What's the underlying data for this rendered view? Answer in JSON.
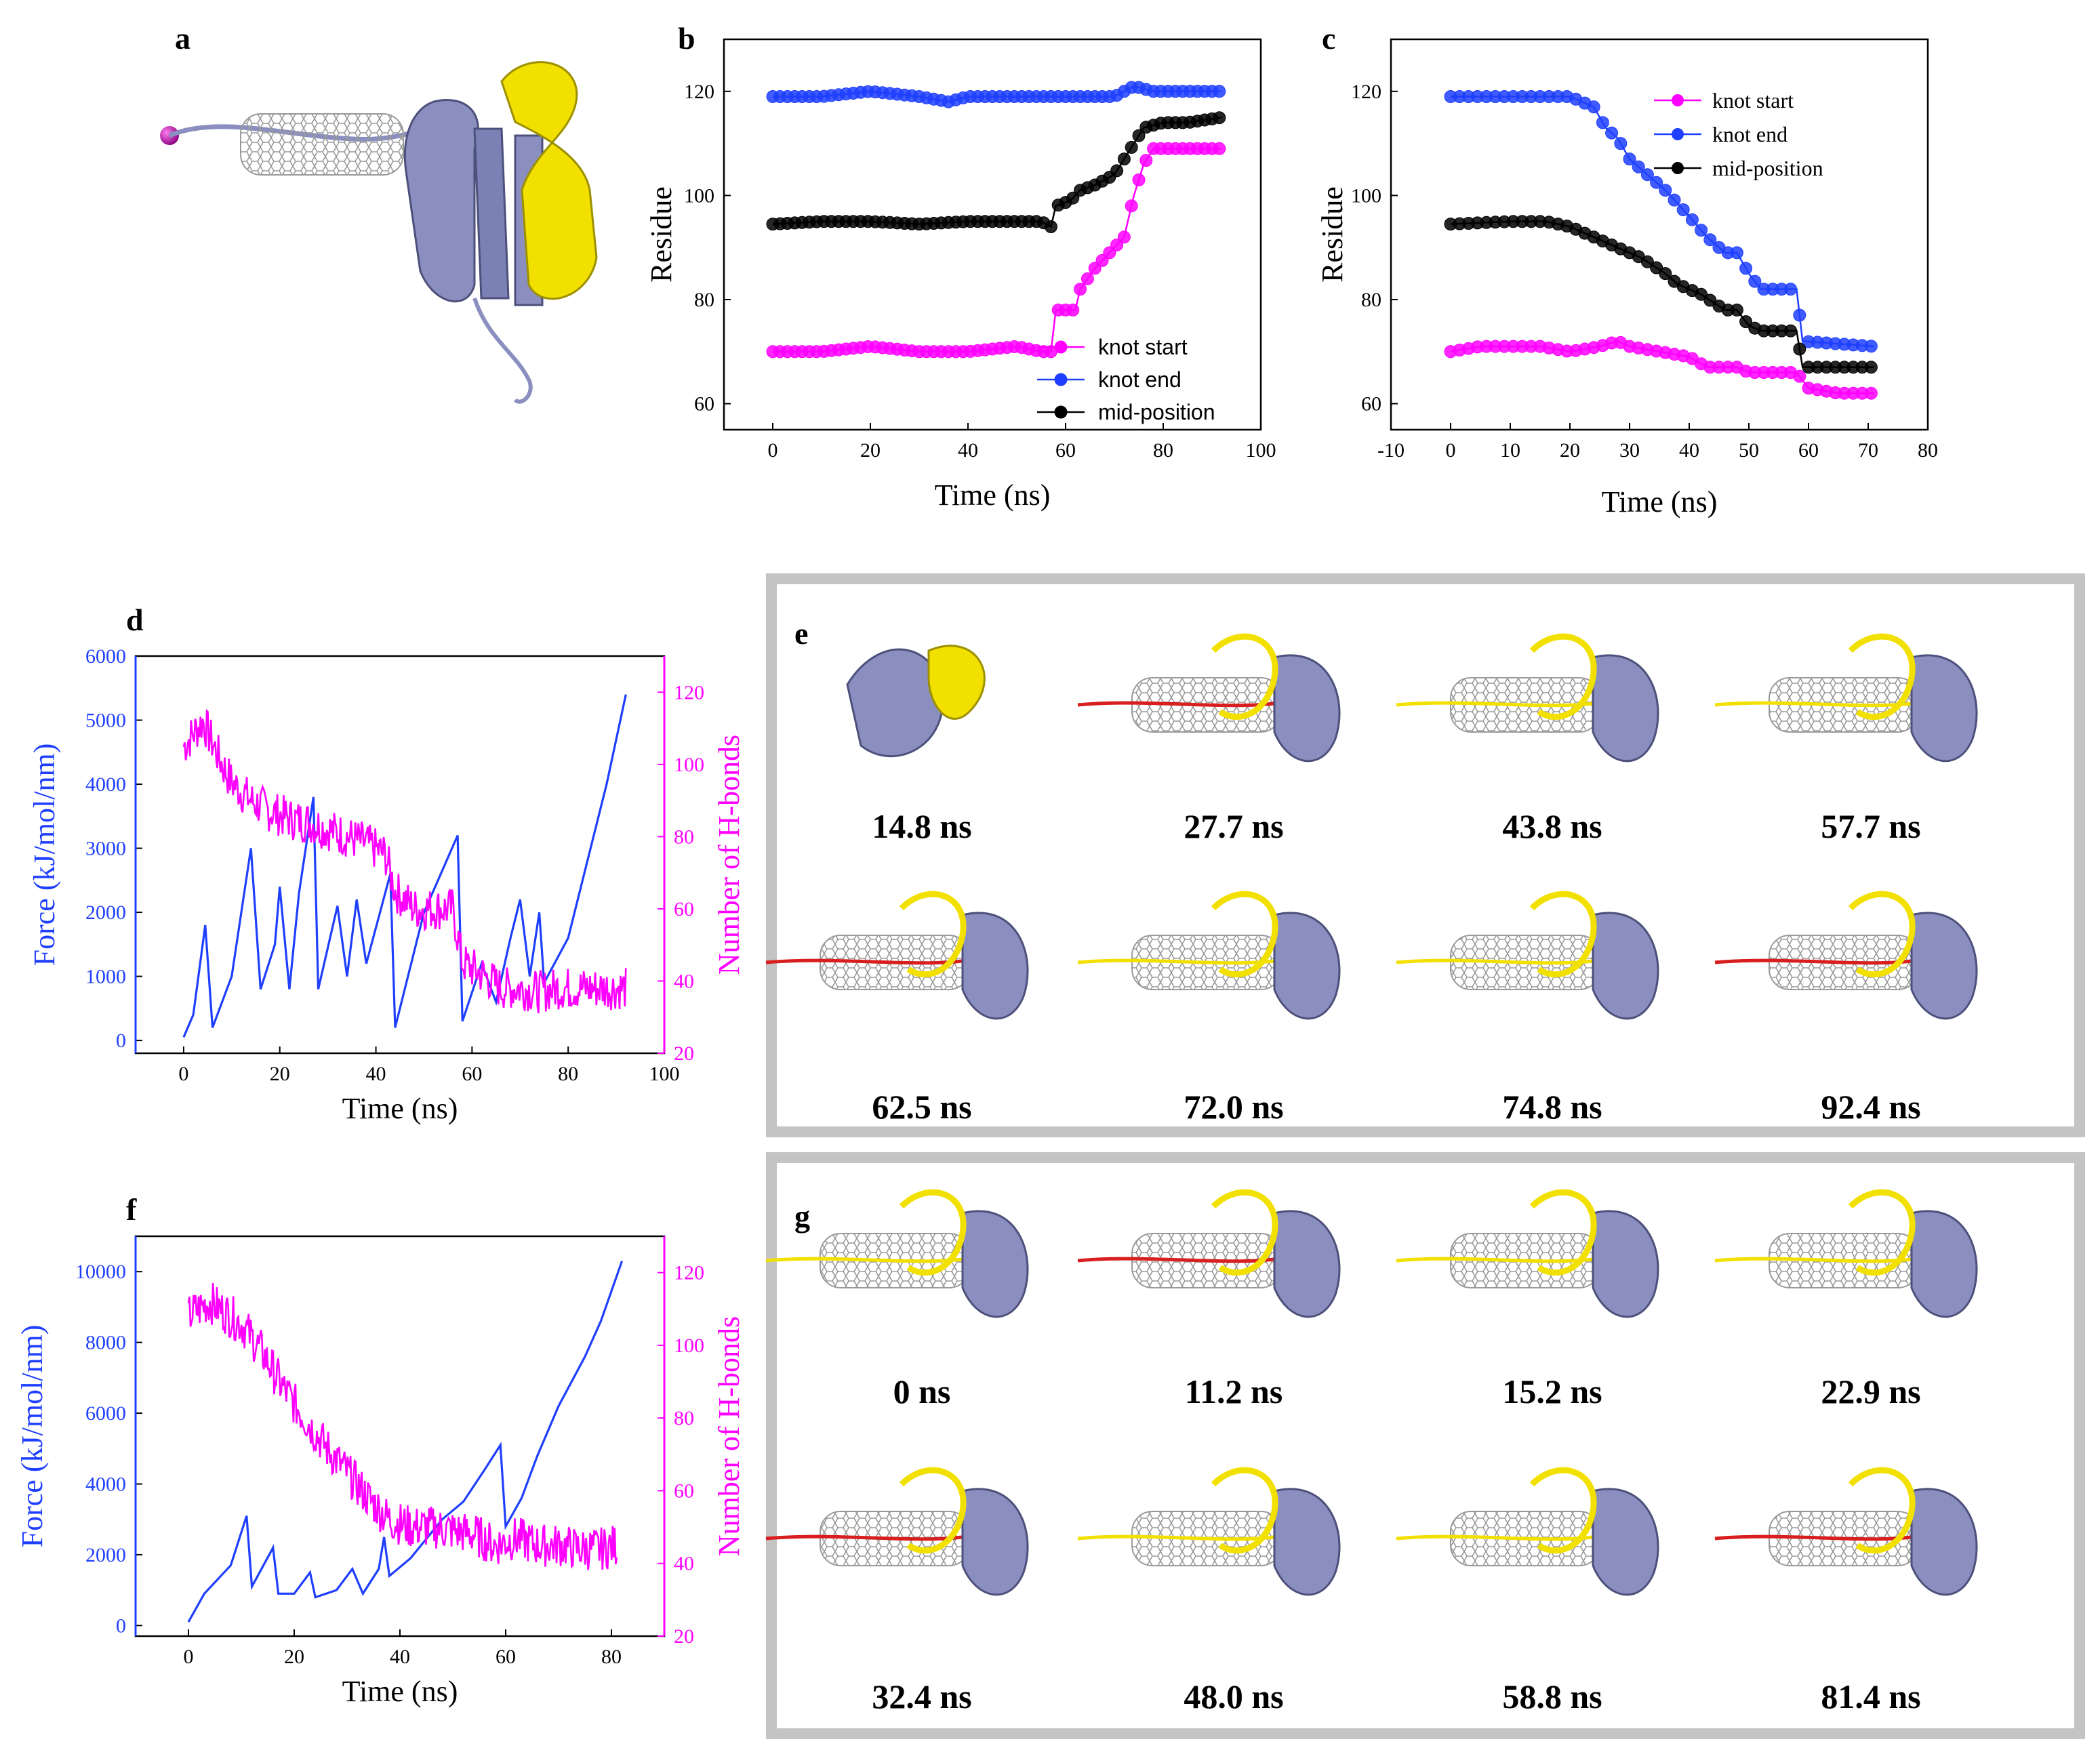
{
  "panels": {
    "a": "a",
    "b": "b",
    "c": "c",
    "d": "d",
    "e": "e",
    "f": "f",
    "g": "g"
  },
  "colors": {
    "protein": "#8a8fc0",
    "knotted": "#f2e000",
    "pulled": "#d81e1e",
    "cnt": "#9a9a9a",
    "pink": "#ff00ff",
    "blue": "#1f3fff",
    "black": "#000000"
  },
  "chart_data": [
    {
      "id": "b",
      "type": "line",
      "title": "",
      "xlabel": "Time (ns)",
      "ylabel": "Residue",
      "xlim": [
        -10,
        100
      ],
      "ylim": [
        55,
        130
      ],
      "xticks": [
        0,
        20,
        40,
        60,
        80,
        100
      ],
      "yticks": [
        60,
        80,
        100,
        120
      ],
      "legend_position": "bottom-right",
      "series": [
        {
          "name": "knot start",
          "color": "#ff00ff",
          "points": [
            [
              0,
              70
            ],
            [
              10,
              70
            ],
            [
              20,
              71
            ],
            [
              30,
              70
            ],
            [
              40,
              70
            ],
            [
              50,
              71
            ],
            [
              55,
              70
            ],
            [
              57,
              70
            ],
            [
              58,
              78
            ],
            [
              62,
              78
            ],
            [
              63,
              82
            ],
            [
              66,
              86
            ],
            [
              68,
              88
            ],
            [
              70,
              90
            ],
            [
              72,
              92
            ],
            [
              74,
              100
            ],
            [
              76,
              106
            ],
            [
              78,
              109
            ],
            [
              85,
              109
            ],
            [
              92,
              109
            ]
          ]
        },
        {
          "name": "knot end",
          "color": "#1f3fff",
          "points": [
            [
              0,
              119
            ],
            [
              10,
              119
            ],
            [
              20,
              120
            ],
            [
              30,
              119
            ],
            [
              36,
              118
            ],
            [
              40,
              119
            ],
            [
              50,
              119
            ],
            [
              60,
              119
            ],
            [
              70,
              119
            ],
            [
              74,
              121
            ],
            [
              78,
              120
            ],
            [
              85,
              120
            ],
            [
              92,
              120
            ]
          ]
        },
        {
          "name": "mid-position",
          "color": "#000000",
          "points": [
            [
              0,
              94.5
            ],
            [
              10,
              95
            ],
            [
              20,
              95
            ],
            [
              30,
              94.5
            ],
            [
              40,
              95
            ],
            [
              50,
              95
            ],
            [
              55,
              95
            ],
            [
              57,
              94
            ],
            [
              58,
              98
            ],
            [
              61,
              99
            ],
            [
              63,
              101
            ],
            [
              66,
              102
            ],
            [
              70,
              104
            ],
            [
              72,
              107
            ],
            [
              74,
              110
            ],
            [
              76,
              113
            ],
            [
              80,
              114
            ],
            [
              85,
              114
            ],
            [
              92,
              115
            ]
          ]
        }
      ]
    },
    {
      "id": "c",
      "type": "line",
      "title": "",
      "xlabel": "Time (ns)",
      "ylabel": "Residue",
      "xlim": [
        -10,
        80
      ],
      "ylim": [
        55,
        130
      ],
      "xticks": [
        -10,
        0,
        10,
        20,
        30,
        40,
        50,
        60,
        70,
        80
      ],
      "yticks": [
        60,
        80,
        100,
        120
      ],
      "legend_position": "top-center",
      "series": [
        {
          "name": "knot start",
          "color": "#ff00ff",
          "points": [
            [
              0,
              70
            ],
            [
              5,
              71
            ],
            [
              10,
              71
            ],
            [
              15,
              71
            ],
            [
              20,
              70
            ],
            [
              25,
              71
            ],
            [
              28,
              72
            ],
            [
              30,
              71
            ],
            [
              35,
              70
            ],
            [
              40,
              69
            ],
            [
              43,
              67
            ],
            [
              48,
              67
            ],
            [
              50,
              66
            ],
            [
              58,
              66
            ],
            [
              60,
              63
            ],
            [
              65,
              62
            ],
            [
              71,
              62
            ]
          ]
        },
        {
          "name": "knot end",
          "color": "#1f3fff",
          "points": [
            [
              0,
              119
            ],
            [
              10,
              119
            ],
            [
              20,
              119
            ],
            [
              24,
              117
            ],
            [
              26,
              113
            ],
            [
              28,
              111
            ],
            [
              30,
              107
            ],
            [
              34,
              103
            ],
            [
              36,
              101
            ],
            [
              40,
              96
            ],
            [
              43,
              92
            ],
            [
              46,
              89
            ],
            [
              48,
              89
            ],
            [
              50,
              85
            ],
            [
              52,
              82
            ],
            [
              58,
              82
            ],
            [
              59,
              72
            ],
            [
              71,
              71
            ]
          ]
        },
        {
          "name": "mid-position",
          "color": "#000000",
          "points": [
            [
              0,
              94.5
            ],
            [
              10,
              95
            ],
            [
              16,
              95
            ],
            [
              20,
              94
            ],
            [
              24,
              92
            ],
            [
              28,
              90
            ],
            [
              32,
              88
            ],
            [
              36,
              85
            ],
            [
              38,
              83
            ],
            [
              42,
              81
            ],
            [
              46,
              78
            ],
            [
              48,
              78
            ],
            [
              50,
              75
            ],
            [
              52,
              74
            ],
            [
              58,
              74
            ],
            [
              59,
              67
            ],
            [
              71,
              67
            ]
          ]
        }
      ]
    },
    {
      "id": "d",
      "type": "line",
      "title": "",
      "xlabel": "Time (ns)",
      "ylabel": "Force (kJ/mol/nm)",
      "ylabel_right": "Number of H-bonds",
      "xlim": [
        -10,
        100
      ],
      "ylim": [
        -200,
        6000
      ],
      "ylim_right": [
        20,
        130
      ],
      "xticks": [
        0,
        20,
        40,
        60,
        80,
        100
      ],
      "yticks": [
        0,
        1000,
        2000,
        3000,
        4000,
        5000,
        6000
      ],
      "yticks_right": [
        20,
        40,
        60,
        80,
        100,
        120
      ],
      "series": [
        {
          "name": "Force",
          "color": "#1f3fff",
          "axis": "left",
          "points": [
            [
              0,
              50
            ],
            [
              2,
              400
            ],
            [
              4.5,
              1800
            ],
            [
              6,
              200
            ],
            [
              10,
              1000
            ],
            [
              14,
              3000
            ],
            [
              16,
              800
            ],
            [
              19,
              1500
            ],
            [
              20,
              2400
            ],
            [
              22,
              800
            ],
            [
              24,
              2300
            ],
            [
              27,
              3800
            ],
            [
              28,
              800
            ],
            [
              32,
              2100
            ],
            [
              34,
              1000
            ],
            [
              36,
              2200
            ],
            [
              38,
              1200
            ],
            [
              43,
              2600
            ],
            [
              44,
              200
            ],
            [
              50,
              2000
            ],
            [
              57,
              3200
            ],
            [
              58,
              300
            ],
            [
              62,
              1200
            ],
            [
              65,
              600
            ],
            [
              68,
              1600
            ],
            [
              70,
              2200
            ],
            [
              72,
              1000
            ],
            [
              74,
              2000
            ],
            [
              75,
              900
            ],
            [
              80,
              1600
            ],
            [
              84,
              2800
            ],
            [
              88,
              4000
            ],
            [
              92,
              5400
            ]
          ]
        },
        {
          "name": "Number of H-bonds",
          "color": "#ff00ff",
          "axis": "right",
          "noisy": true,
          "points": [
            [
              0,
              105
            ],
            [
              4,
              112
            ],
            [
              8,
              100
            ],
            [
              10,
              95
            ],
            [
              14,
              90
            ],
            [
              18,
              87
            ],
            [
              22,
              85
            ],
            [
              26,
              84
            ],
            [
              30,
              82
            ],
            [
              34,
              80
            ],
            [
              38,
              78
            ],
            [
              42,
              75
            ],
            [
              44,
              65
            ],
            [
              48,
              60
            ],
            [
              52,
              60
            ],
            [
              56,
              60
            ],
            [
              58,
              45
            ],
            [
              62,
              42
            ],
            [
              66,
              38
            ],
            [
              70,
              38
            ],
            [
              74,
              37
            ],
            [
              78,
              38
            ],
            [
              84,
              38
            ],
            [
              92,
              38
            ]
          ]
        }
      ]
    },
    {
      "id": "f",
      "type": "line",
      "title": "",
      "xlabel": "Time (ns)",
      "ylabel": "Force (kJ/mol/nm)",
      "ylabel_right": "Number of H-bonds",
      "xlim": [
        -10,
        90
      ],
      "ylim": [
        -300,
        11000
      ],
      "ylim_right": [
        20,
        130
      ],
      "xticks": [
        0,
        20,
        40,
        60,
        80
      ],
      "yticks": [
        0,
        2000,
        4000,
        6000,
        8000,
        10000
      ],
      "yticks_right": [
        20,
        40,
        60,
        80,
        100,
        120
      ],
      "series": [
        {
          "name": "Force",
          "color": "#1f3fff",
          "axis": "left",
          "points": [
            [
              0,
              100
            ],
            [
              3,
              900
            ],
            [
              8,
              1700
            ],
            [
              11,
              3100
            ],
            [
              12,
              1100
            ],
            [
              16,
              2200
            ],
            [
              17,
              900
            ],
            [
              20,
              900
            ],
            [
              23,
              1500
            ],
            [
              24,
              800
            ],
            [
              28,
              1000
            ],
            [
              31,
              1600
            ],
            [
              33,
              900
            ],
            [
              36,
              1600
            ],
            [
              37,
              2500
            ],
            [
              38,
              1400
            ],
            [
              42,
              1900
            ],
            [
              48,
              3000
            ],
            [
              52,
              3500
            ],
            [
              56,
              4400
            ],
            [
              59,
              5100
            ],
            [
              60,
              2800
            ],
            [
              63,
              3600
            ],
            [
              66,
              4800
            ],
            [
              70,
              6200
            ],
            [
              75,
              7600
            ],
            [
              78,
              8600
            ],
            [
              82,
              10300
            ]
          ]
        },
        {
          "name": "Number of H-bonds",
          "color": "#ff00ff",
          "axis": "right",
          "noisy": true,
          "points": [
            [
              0,
              108
            ],
            [
              4,
              112
            ],
            [
              10,
              106
            ],
            [
              14,
              98
            ],
            [
              18,
              88
            ],
            [
              22,
              80
            ],
            [
              26,
              72
            ],
            [
              30,
              65
            ],
            [
              34,
              58
            ],
            [
              38,
              52
            ],
            [
              42,
              50
            ],
            [
              46,
              50
            ],
            [
              50,
              49
            ],
            [
              54,
              48
            ],
            [
              58,
              45
            ],
            [
              62,
              47
            ],
            [
              66,
              45
            ],
            [
              70,
              45
            ],
            [
              74,
              44
            ],
            [
              78,
              44
            ],
            [
              81,
              45
            ]
          ]
        }
      ]
    }
  ],
  "panel_e": {
    "times": [
      "14.8 ns",
      "27.7 ns",
      "43.8 ns",
      "57.7 ns",
      "62.5 ns",
      "72.0 ns",
      "74.8 ns",
      "92.4 ns"
    ]
  },
  "panel_g": {
    "times": [
      "0 ns",
      "11.2 ns",
      "15.2 ns",
      "22.9 ns",
      "32.4 ns",
      "48.0 ns",
      "58.8 ns",
      "81.4 ns"
    ]
  }
}
